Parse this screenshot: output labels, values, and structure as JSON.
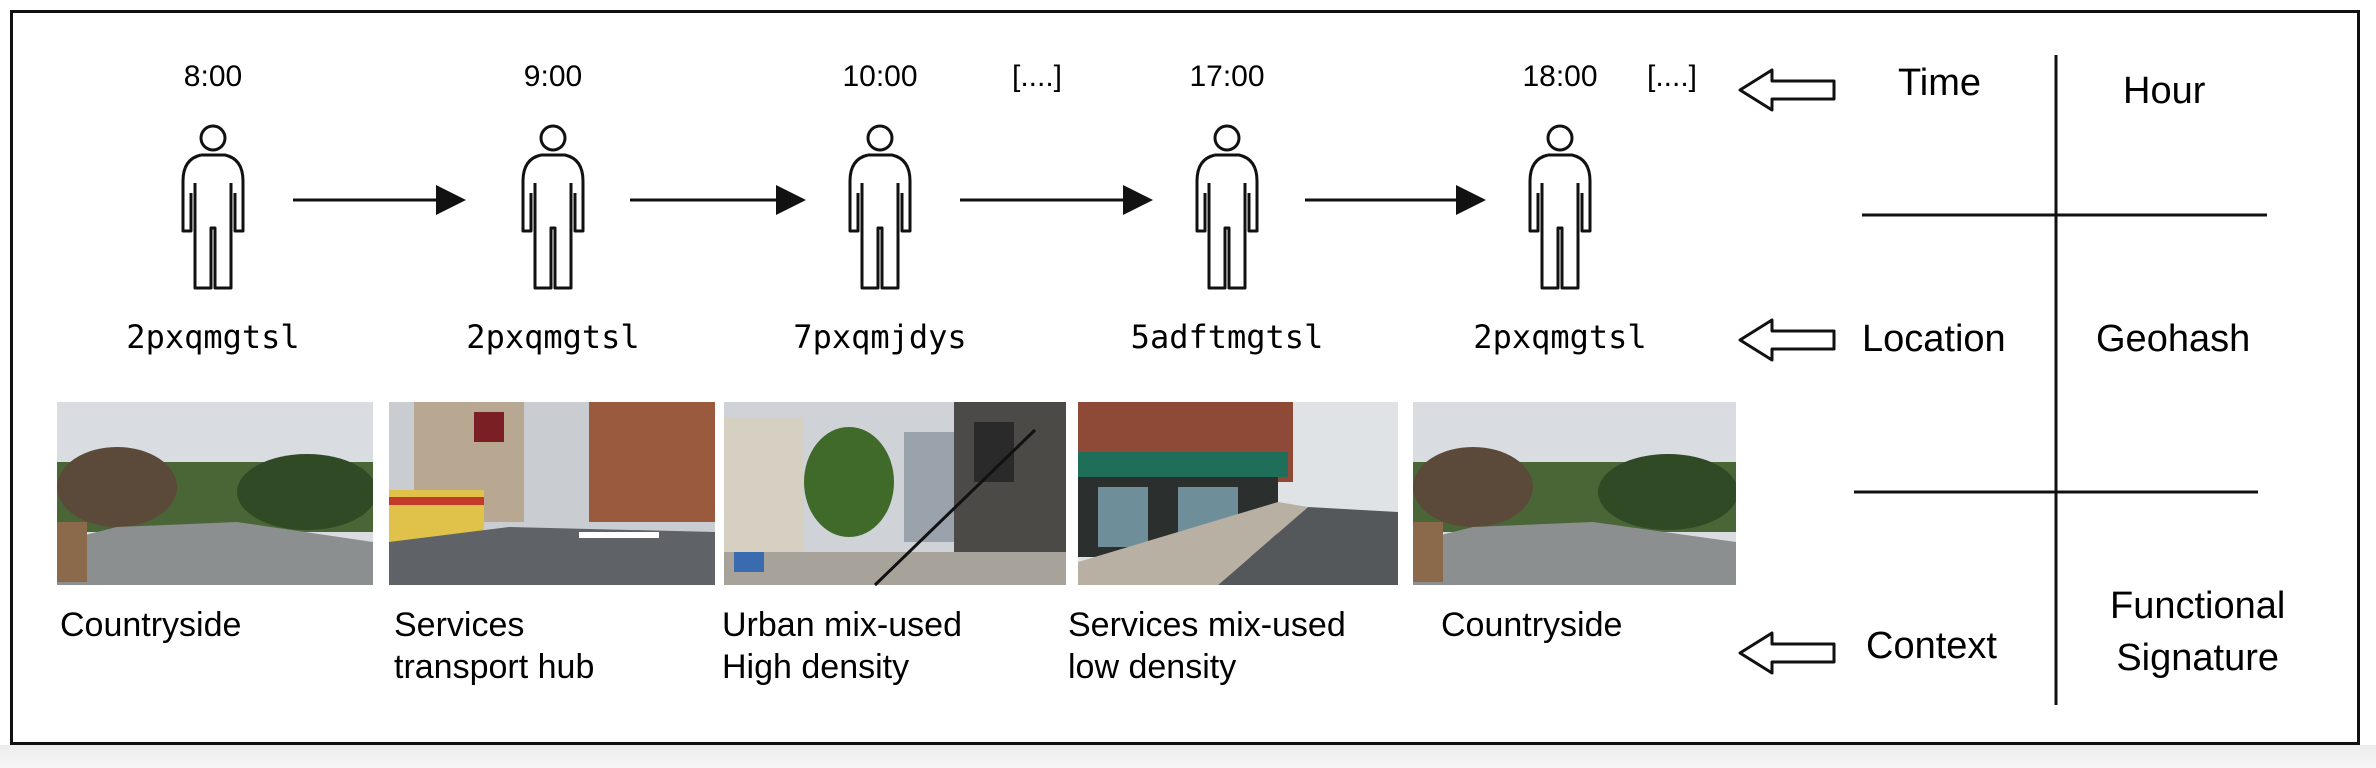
{
  "timeline": [
    {
      "time": "8:00",
      "geohash": "2pxqmgtsl",
      "context": [
        "Countryside"
      ]
    },
    {
      "time": "9:00",
      "geohash": "2pxqmgtsl",
      "context": [
        "Services",
        "transport hub"
      ]
    },
    {
      "time": "10:00",
      "geohash": "7pxqmjdys",
      "context": [
        "Urban mix-used",
        "High density"
      ]
    },
    {
      "time": "17:00",
      "geohash": "5adftmgtsl",
      "context": [
        "Services mix-used",
        "low density"
      ]
    },
    {
      "time": "18:00",
      "geohash": "2pxqmgtsl",
      "context": [
        "Countryside"
      ]
    }
  ],
  "ellipsis": "[....]",
  "rows": [
    {
      "label": "Time",
      "signature": "Hour"
    },
    {
      "label": "Location",
      "signature": "Geohash"
    },
    {
      "label": "Context",
      "signature": [
        "Functional",
        "Signature"
      ]
    }
  ],
  "colors": {
    "stroke": "#111111",
    "sky": "#d9dde2",
    "grass": "#3f5a2e",
    "road": "#8c8f8f"
  }
}
